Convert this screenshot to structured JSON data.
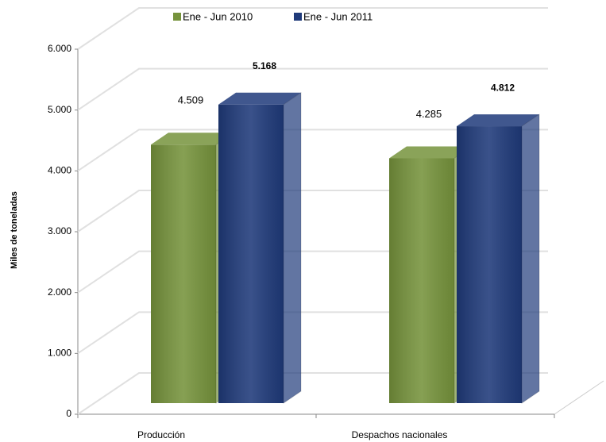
{
  "chart_data": {
    "type": "bar3d",
    "y_label": "Miles de toneladas",
    "categories": [
      "Producción",
      "Despachos nacionales"
    ],
    "series": [
      {
        "name": "Ene - Jun 2010",
        "color": "#76933c",
        "values": [
          4509,
          4285
        ],
        "value_labels": [
          "4.509",
          "4.285"
        ]
      },
      {
        "name": "Ene - Jun 2011",
        "color": "#1f3a7a",
        "values": [
          5168,
          4812
        ],
        "value_labels": [
          "5.168",
          "4.812"
        ]
      }
    ],
    "ylim": [
      0,
      6000
    ],
    "yticks": [
      0,
      {
        "value": 1000,
        "label": "1.000"
      },
      {
        "value": 2000,
        "label": "2.000"
      },
      {
        "value": 3000,
        "label": "3.000"
      },
      {
        "value": 4000,
        "label": "4.000"
      },
      {
        "value": 5000,
        "label": "5.000"
      },
      {
        "value": 6000,
        "label": "6.000"
      }
    ],
    "grid": true
  }
}
